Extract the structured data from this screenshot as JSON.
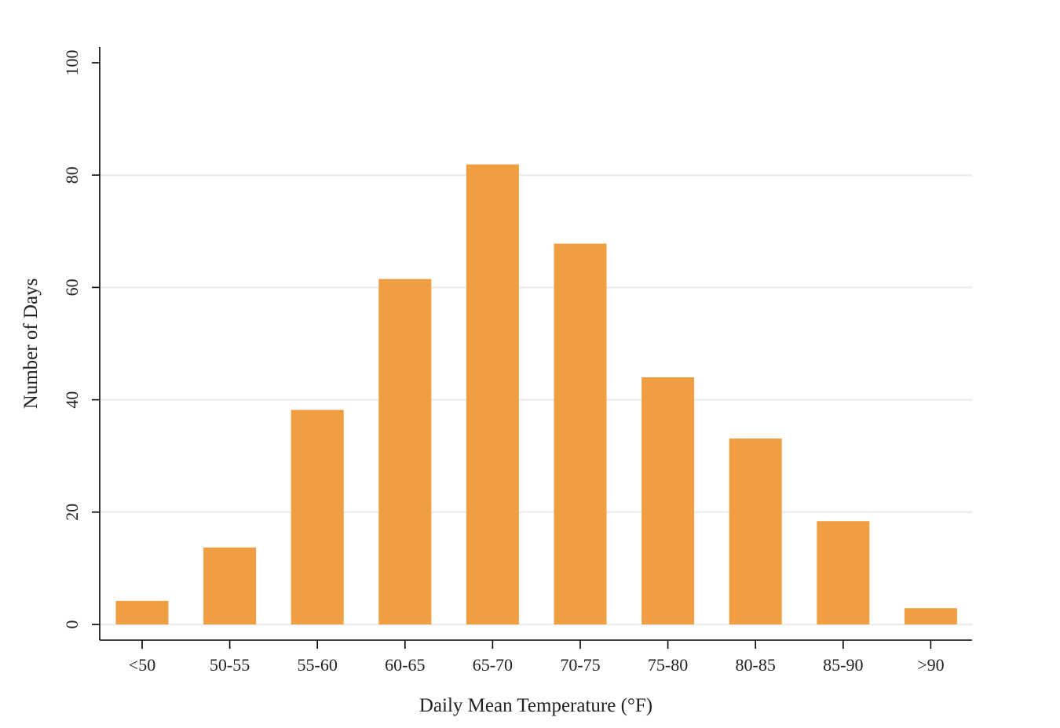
{
  "chart_data": {
    "type": "bar",
    "categories": [
      "<50",
      "50-55",
      "55-60",
      "60-65",
      "65-70",
      "70-75",
      "75-80",
      "80-85",
      "85-90",
      ">90"
    ],
    "values": [
      4.2,
      13.7,
      38.2,
      61.5,
      81.9,
      67.8,
      44.0,
      33.1,
      18.4,
      2.9
    ],
    "xlabel": "Daily Mean Temperature (°F)",
    "ylabel": "Number of Days",
    "ylim": [
      0,
      100
    ],
    "yticks": [
      0,
      20,
      40,
      60,
      80,
      100
    ],
    "ytick_labels": [
      "0",
      "20",
      "40",
      "60",
      "80",
      "100"
    ],
    "grid": true,
    "bar_color": "#f09e42",
    "grid_color": "#e8eeee"
  }
}
